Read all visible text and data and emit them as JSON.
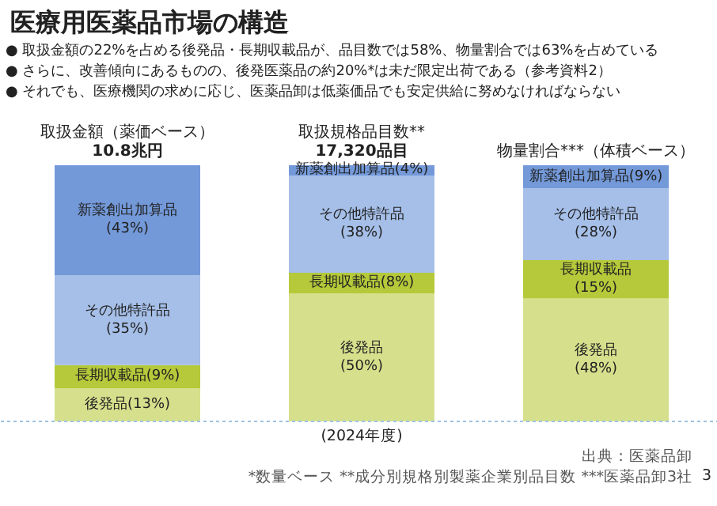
{
  "chart_data": {
    "type": "bar",
    "stacked": true,
    "title": "医療用医薬品市場の構造",
    "subtitle": "● 取扱金額の22%を占める後発品・長期収載品が、品目数では58%、物量割合では63%を占めている\n● さらに、改善傾向にあるものの、後発医薬品の約20%*は未だ限定出荷である（参考資料2）\n● それでも、医療機関の求めに応じ、医薬品卸は低薬価品でも安定供給に努めなければならない",
    "categories": [
      "取扱金額（薬価ベース）\n10.8兆円",
      "取扱規格品目数**\n17,320品目",
      "物量割合***（体積ベース）"
    ],
    "series": [
      {
        "color": "#d6e08c",
        "values": [
          13,
          50,
          48
        ],
        "value_labels": [
          "後発品(13%)",
          "後発品\n(50%)",
          "後発品\n(48%)"
        ]
      },
      {
        "color": "#b5c93a",
        "values": [
          9,
          8,
          15
        ],
        "value_labels": [
          "長期収載品(9%)",
          "長期収載品(8%)",
          "長期収載品\n(15%)"
        ]
      },
      {
        "color": "#a5bfe8",
        "values": [
          35,
          38,
          28
        ],
        "value_labels": [
          "その他特許品\n(35%)",
          "その他特許品\n(38%)",
          "その他特許品\n(28%)"
        ]
      },
      {
        "color": "#7399d9",
        "values": [
          43,
          4,
          9
        ],
        "value_labels": [
          "新薬創出加算品\n(43%)",
          "新薬創出加算品(4%)",
          "新薬創出加算品(9%)"
        ]
      }
    ],
    "annotations": [
      "(2024年度)",
      "出典：医薬品卸",
      "*数量ベース **成分別規格別製薬企業別品目数 ***医薬品卸3社",
      "3"
    ],
    "grid": false
  }
}
